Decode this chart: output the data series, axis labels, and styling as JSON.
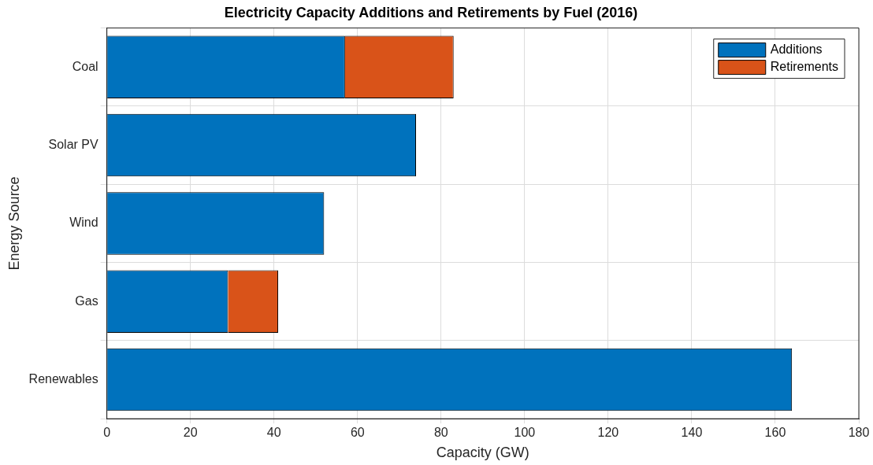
{
  "chart_data": {
    "type": "bar",
    "orientation": "horizontal",
    "stacked": true,
    "title": "Electricity Capacity Additions and Retirements by Fuel (2016)",
    "xlabel": "Capacity (GW)",
    "ylabel": "Energy Source",
    "categories": [
      "Coal",
      "Solar PV",
      "Wind",
      "Gas",
      "Renewables"
    ],
    "series": [
      {
        "name": "Additions",
        "color": "#0072bd",
        "values": [
          57,
          74,
          52,
          29,
          164
        ]
      },
      {
        "name": "Retirements",
        "color": "#d95319",
        "values": [
          26,
          null,
          null,
          12,
          null
        ]
      }
    ],
    "xlim": [
      0,
      180
    ],
    "xticks": [
      0,
      20,
      40,
      60,
      80,
      100,
      120,
      140,
      160,
      180
    ],
    "grid": true,
    "legend": "top right"
  }
}
